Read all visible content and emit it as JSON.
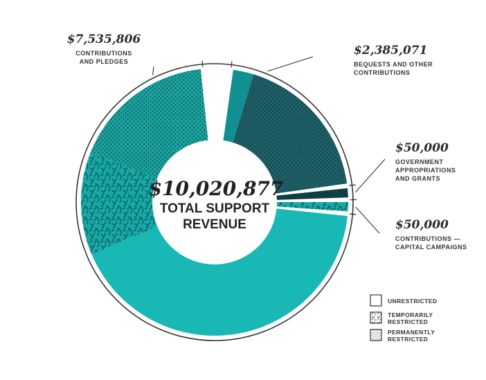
{
  "colors": {
    "teal": "#19b8b5",
    "teal_dark": "#128f93",
    "navy": "#164f58",
    "navy_dark": "#0f3e45",
    "ink": "#333333"
  },
  "chart_data": {
    "type": "pie",
    "donut": true,
    "center": {
      "amount": "$10,020,877",
      "caption_line1": "TOTAL SUPPORT",
      "caption_line2": "REVENUE"
    },
    "slices": [
      {
        "amount_label": "$2,385,071",
        "value": 2385071,
        "label_lines": [
          "BEQUESTS AND OTHER",
          "CONTRIBUTIONS"
        ],
        "segments": [
          {
            "restriction": "unrestricted",
            "value": 250000
          },
          {
            "restriction": "permanently restricted",
            "value": 2135071
          }
        ]
      },
      {
        "amount_label": "$50,000",
        "value": 50000,
        "label_lines": [
          "GOVERNMENT",
          "APPROPRIATIONS",
          "AND GRANTS"
        ],
        "segments": [
          {
            "restriction": "unrestricted",
            "value": 50000
          }
        ]
      },
      {
        "amount_label": "$50,000",
        "value": 50000,
        "label_lines": [
          "CONTRIBUTIONS —",
          "CAPITAL CAMPAIGNS"
        ],
        "segments": [
          {
            "restriction": "temporarily restricted",
            "value": 50000
          }
        ]
      },
      {
        "amount_label": "$7,535,806",
        "value": 7535806,
        "label_lines": [
          "CONTRIBUTIONS",
          "AND PLEDGES"
        ],
        "segments": [
          {
            "restriction": "unrestricted",
            "value": 4200000
          },
          {
            "restriction": "temporarily restricted",
            "value": 1650000
          },
          {
            "restriction": "permanently restricted",
            "value": 1685806
          }
        ]
      }
    ],
    "legend": {
      "position": "bottom-right",
      "items": [
        {
          "key": "unrestricted",
          "lines": [
            "UNRESTRICTED"
          ]
        },
        {
          "key": "temporarily restricted",
          "lines": [
            "TEMPORARILY",
            "RESTRICTED"
          ]
        },
        {
          "key": "permanently restricted",
          "lines": [
            "PERMANENTLY",
            "RESTRICTED"
          ]
        }
      ]
    }
  }
}
